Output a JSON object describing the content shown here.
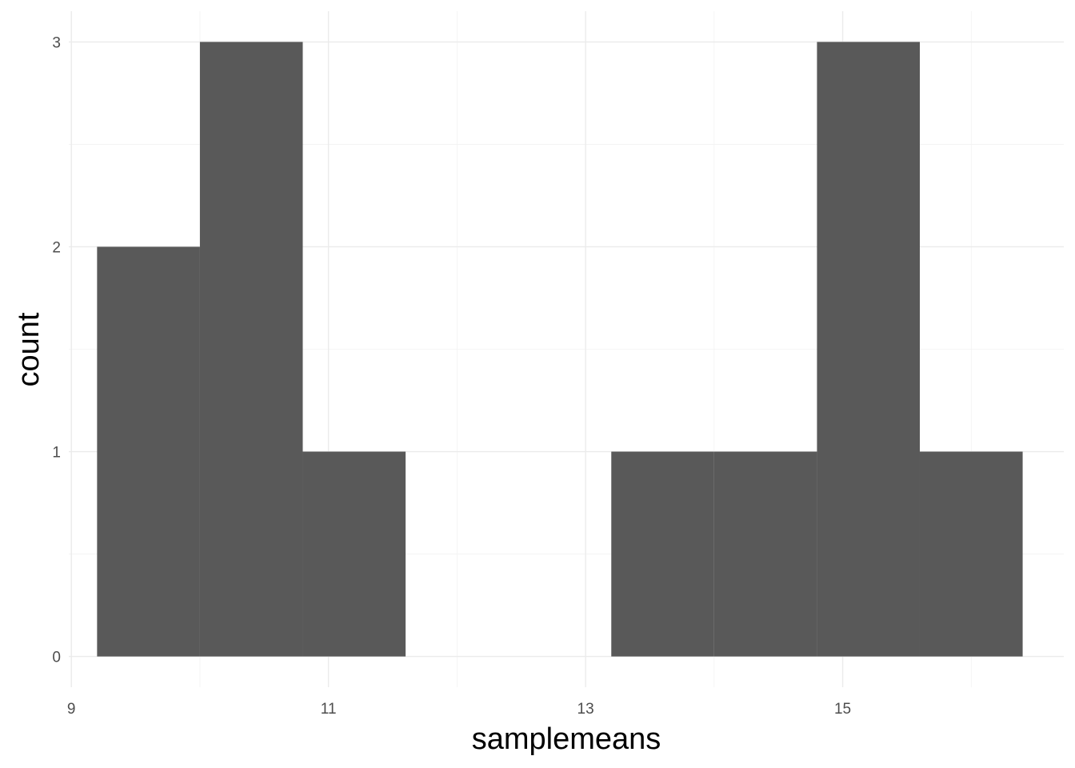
{
  "chart_data": {
    "type": "bar",
    "subtype": "histogram",
    "xlabel": "samplemeans",
    "ylabel": "count",
    "bin_width": 0.8,
    "bins": [
      {
        "start": 9.2,
        "end": 10.0,
        "count": 2
      },
      {
        "start": 10.0,
        "end": 10.8,
        "count": 3
      },
      {
        "start": 10.8,
        "end": 11.6,
        "count": 1
      },
      {
        "start": 11.6,
        "end": 12.4,
        "count": 0
      },
      {
        "start": 12.4,
        "end": 13.2,
        "count": 0
      },
      {
        "start": 13.2,
        "end": 14.0,
        "count": 1
      },
      {
        "start": 14.0,
        "end": 14.8,
        "count": 1
      },
      {
        "start": 14.8,
        "end": 15.6,
        "count": 3
      },
      {
        "start": 15.6,
        "end": 16.4,
        "count": 1
      }
    ],
    "xlim": [
      8.98,
      16.72
    ],
    "ylim": [
      -0.15,
      3.15
    ],
    "x_ticks": [
      9,
      11,
      13,
      15
    ],
    "x_tick_labels": [
      "9",
      "11",
      "13",
      "15"
    ],
    "y_ticks": [
      0,
      1,
      2,
      3
    ],
    "y_tick_labels": [
      "0",
      "1",
      "2",
      "3"
    ],
    "x_minor_ticks": [
      10,
      12,
      14,
      16
    ],
    "y_minor_ticks": [
      0.5,
      1.5,
      2.5
    ],
    "grid": true,
    "theme": "minimal",
    "bar_color": "#595959",
    "grid_color": "#ebebeb"
  }
}
